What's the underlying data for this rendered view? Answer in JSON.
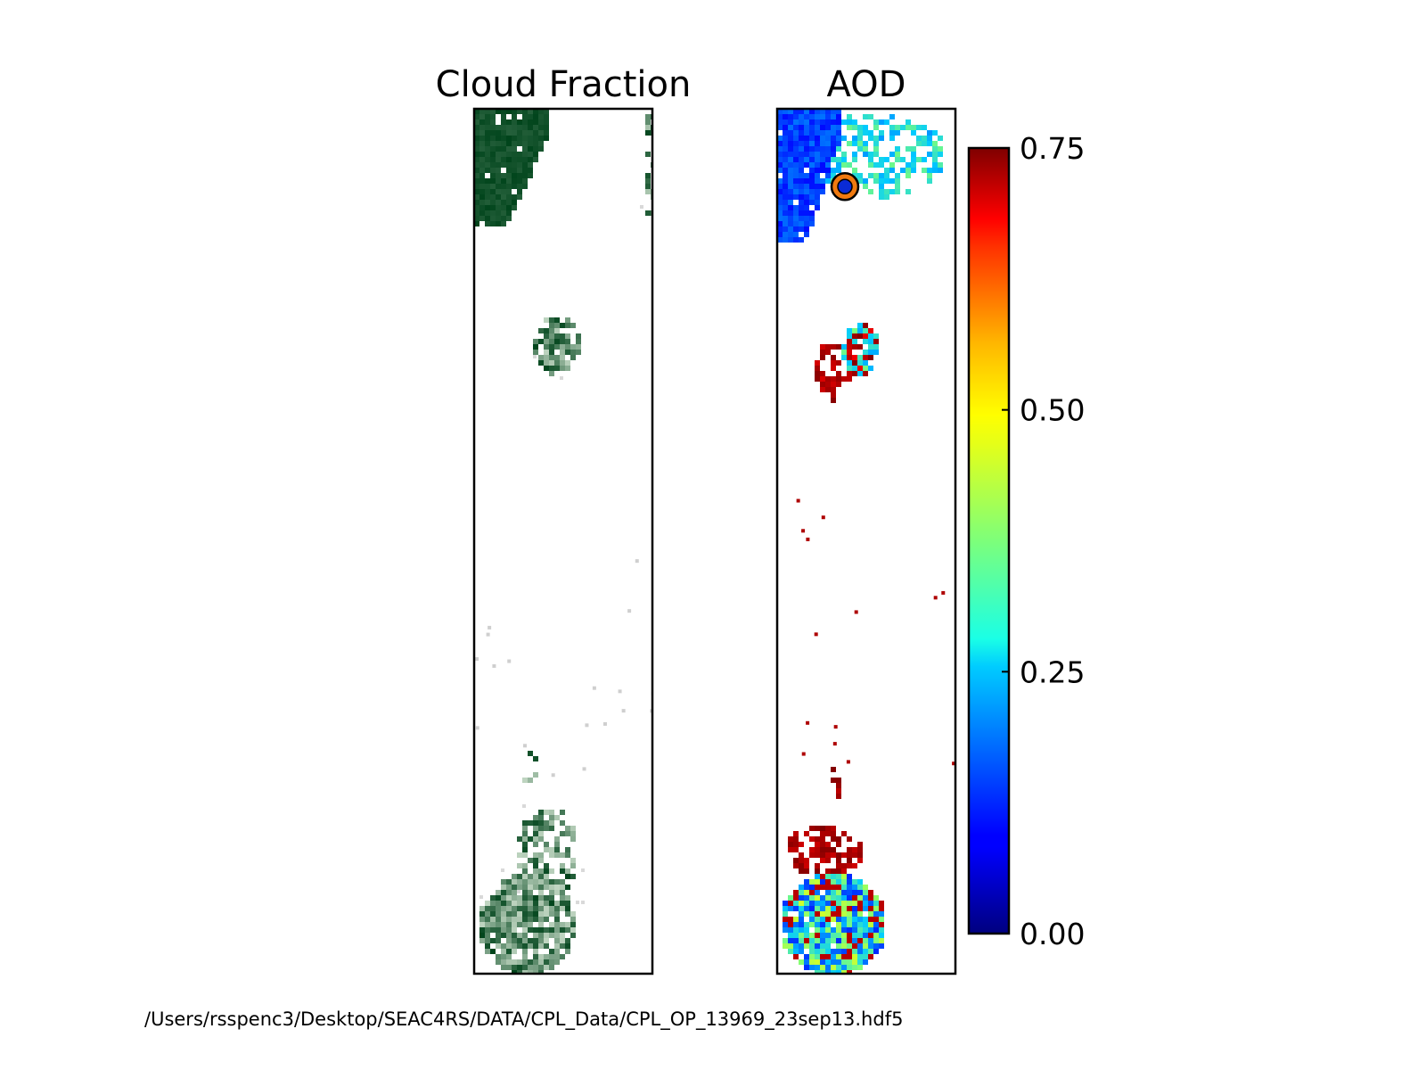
{
  "figure": {
    "footer_path": "/Users/rsspenc3/Desktop/SEAC4RS/DATA/CPL_Data/CPL_OP_13969_23sep13.hdf5"
  },
  "chart_data": [
    {
      "type": "heatmap",
      "title": "Cloud Fraction",
      "colormap": "Greens",
      "colors": {
        "low": "#f7fcf5",
        "high": "#00441b",
        "contour": "#bdbdbd"
      },
      "regions": [
        {
          "name": "northwest-cloud-deck",
          "cx": 0.12,
          "cy": 0.08,
          "level": 0.95
        },
        {
          "name": "northeast-edge-cloud",
          "cx": 0.97,
          "cy": 0.06,
          "level": 0.6
        },
        {
          "name": "mid-cloud-cluster",
          "cx": 0.43,
          "cy": 0.27,
          "level": 0.8
        },
        {
          "name": "isolated-mid-speckles",
          "cx": 0.5,
          "cy": 0.6,
          "level": 0.3
        },
        {
          "name": "southern-cloud-field",
          "cx": 0.3,
          "cy": 0.91,
          "level": 0.75
        }
      ],
      "grid": false
    },
    {
      "type": "heatmap",
      "title": "AOD",
      "colormap": "jet",
      "colorbar": {
        "range": [
          0.0,
          0.75
        ],
        "ticks": [
          0.0,
          0.25,
          0.5,
          0.75
        ],
        "tick_labels": [
          "0.00",
          "0.25",
          "0.50",
          "0.75"
        ]
      },
      "regions": [
        {
          "name": "northwest-low-aod",
          "cx": 0.15,
          "cy": 0.08,
          "value": 0.15
        },
        {
          "name": "north-scattered-moderate-aod",
          "cx": 0.6,
          "cy": 0.05,
          "value": 0.3
        },
        {
          "name": "mid-cluster-high-aod",
          "cx": 0.35,
          "cy": 0.29,
          "value": 0.75
        },
        {
          "name": "mid-cluster-moderate-aod",
          "cx": 0.45,
          "cy": 0.27,
          "value": 0.3
        },
        {
          "name": "southern-mixed-aod",
          "cx": 0.3,
          "cy": 0.93,
          "value": 0.3
        },
        {
          "name": "southern-high-aod",
          "cx": 0.25,
          "cy": 0.86,
          "value": 0.75
        }
      ],
      "marker": {
        "x": 0.38,
        "y": 0.09,
        "fill": "#0a2bd6",
        "ring": "#f07a10"
      },
      "grid": false
    }
  ]
}
